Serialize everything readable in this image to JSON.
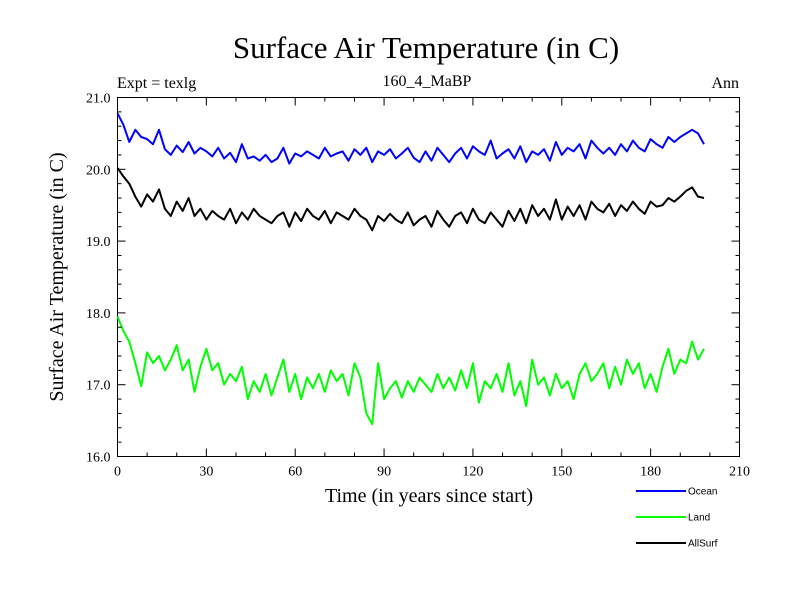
{
  "chart_data": {
    "type": "line",
    "title": "Surface Air Temperature (in C)",
    "subtitle_left": "Expt = texlg",
    "subtitle_center": "160_4_MaBP",
    "subtitle_right": "Ann",
    "xlabel": "Time (in years since start)",
    "ylabel": "Surface Air Temperature (in C)",
    "xlim": [
      0,
      210
    ],
    "ylim": [
      16.0,
      21.0
    ],
    "xticks": [
      0,
      30,
      60,
      90,
      120,
      150,
      180,
      210
    ],
    "yticks": [
      16.0,
      17.0,
      18.0,
      19.0,
      20.0,
      21.0
    ],
    "ytick_labels": [
      "16.0",
      "17.0",
      "18.0",
      "19.0",
      "20.0",
      "21.0"
    ],
    "grid": false,
    "legend_position": "bottom-right",
    "x_start": 0,
    "x_step": 2,
    "series": [
      {
        "name": "Ocean",
        "color": "#0000ff",
        "values": [
          20.78,
          20.62,
          20.38,
          20.55,
          20.45,
          20.42,
          20.35,
          20.55,
          20.28,
          20.2,
          20.33,
          20.24,
          20.38,
          20.22,
          20.3,
          20.25,
          20.18,
          20.3,
          20.15,
          20.23,
          20.1,
          20.35,
          20.15,
          20.18,
          20.12,
          20.2,
          20.1,
          20.15,
          20.3,
          20.08,
          20.22,
          20.18,
          20.25,
          20.2,
          20.15,
          20.3,
          20.18,
          20.22,
          20.25,
          20.12,
          20.28,
          20.2,
          20.3,
          20.1,
          20.25,
          20.2,
          20.28,
          20.15,
          20.22,
          20.3,
          20.16,
          20.1,
          20.25,
          20.12,
          20.3,
          20.2,
          20.1,
          20.22,
          20.3,
          20.15,
          20.32,
          20.25,
          20.2,
          20.4,
          20.15,
          20.22,
          20.28,
          20.15,
          20.32,
          20.1,
          20.25,
          20.2,
          20.28,
          20.12,
          20.38,
          20.2,
          20.3,
          20.25,
          20.35,
          20.15,
          20.4,
          20.3,
          20.22,
          20.3,
          20.2,
          20.35,
          20.25,
          20.4,
          20.3,
          20.25,
          20.42,
          20.35,
          20.3,
          20.45,
          20.38,
          20.45,
          20.5,
          20.55,
          20.5,
          20.35
        ]
      },
      {
        "name": "Land",
        "color": "#00ff00",
        "values": [
          17.95,
          17.75,
          17.6,
          17.3,
          16.98,
          17.45,
          17.3,
          17.4,
          17.2,
          17.35,
          17.55,
          17.2,
          17.35,
          16.9,
          17.25,
          17.5,
          17.2,
          17.3,
          17.0,
          17.15,
          17.05,
          17.25,
          16.8,
          17.05,
          16.9,
          17.15,
          16.85,
          17.1,
          17.35,
          16.9,
          17.15,
          16.8,
          17.1,
          16.95,
          17.15,
          16.9,
          17.2,
          17.05,
          17.15,
          16.85,
          17.3,
          17.1,
          16.6,
          16.45,
          17.3,
          16.8,
          16.95,
          17.05,
          16.82,
          17.05,
          16.9,
          17.1,
          17.0,
          16.9,
          17.15,
          16.95,
          17.1,
          16.92,
          17.2,
          16.95,
          17.3,
          16.75,
          17.05,
          16.95,
          17.15,
          16.9,
          17.3,
          16.85,
          17.05,
          16.7,
          17.35,
          17.0,
          17.1,
          16.85,
          17.15,
          16.95,
          17.05,
          16.8,
          17.15,
          17.3,
          17.05,
          17.15,
          17.3,
          16.95,
          17.25,
          17.0,
          17.35,
          17.15,
          17.3,
          16.95,
          17.15,
          16.9,
          17.25,
          17.5,
          17.15,
          17.35,
          17.3,
          17.6,
          17.35,
          17.5
        ]
      },
      {
        "name": "AllSurf",
        "color": "#000000",
        "values": [
          20.02,
          19.9,
          19.8,
          19.62,
          19.48,
          19.65,
          19.55,
          19.72,
          19.45,
          19.35,
          19.55,
          19.42,
          19.6,
          19.35,
          19.45,
          19.3,
          19.42,
          19.35,
          19.3,
          19.45,
          19.25,
          19.4,
          19.3,
          19.45,
          19.35,
          19.3,
          19.25,
          19.35,
          19.4,
          19.2,
          19.4,
          19.28,
          19.45,
          19.35,
          19.3,
          19.42,
          19.25,
          19.4,
          19.35,
          19.3,
          19.45,
          19.35,
          19.3,
          19.15,
          19.35,
          19.28,
          19.38,
          19.3,
          19.25,
          19.4,
          19.22,
          19.3,
          19.35,
          19.2,
          19.42,
          19.3,
          19.2,
          19.35,
          19.4,
          19.25,
          19.45,
          19.3,
          19.25,
          19.4,
          19.3,
          19.2,
          19.42,
          19.28,
          19.45,
          19.25,
          19.5,
          19.35,
          19.45,
          19.3,
          19.58,
          19.3,
          19.48,
          19.35,
          19.5,
          19.3,
          19.55,
          19.45,
          19.4,
          19.52,
          19.35,
          19.5,
          19.42,
          19.55,
          19.45,
          19.38,
          19.55,
          19.48,
          19.5,
          19.6,
          19.55,
          19.62,
          19.7,
          19.75,
          19.62,
          19.6
        ]
      }
    ]
  }
}
